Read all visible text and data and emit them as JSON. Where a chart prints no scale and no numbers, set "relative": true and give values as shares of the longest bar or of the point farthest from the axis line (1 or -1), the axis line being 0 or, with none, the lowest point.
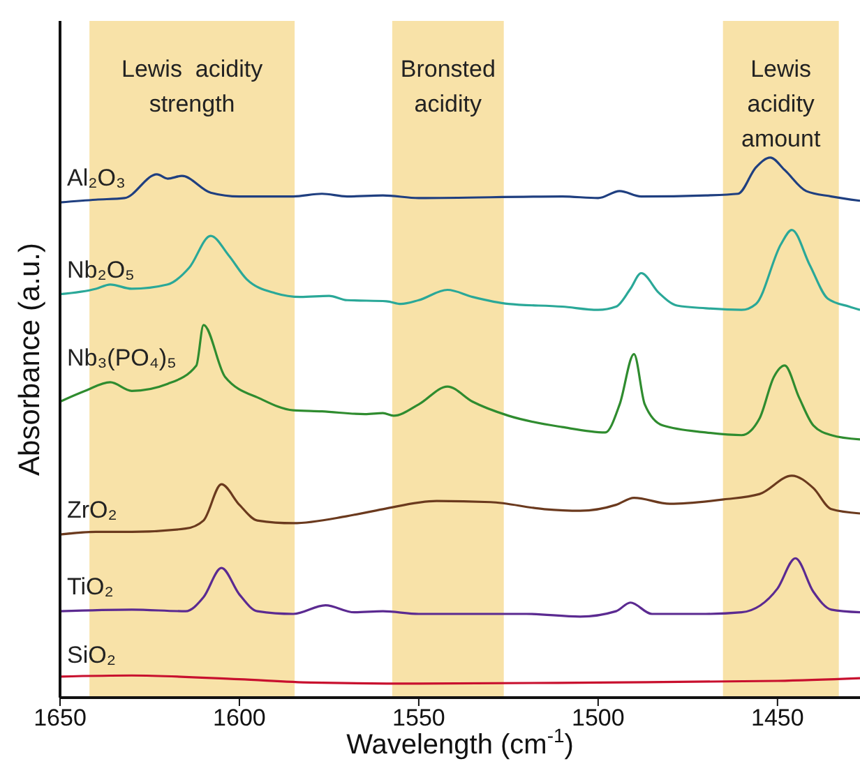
{
  "chart_data": {
    "type": "line",
    "relative": true,
    "xlabel": "Wavelength (cm$^{-1}$)",
    "ylabel": "Absorbance (a.u.)",
    "xlim": [
      1650,
      1427
    ],
    "xticks": [
      1650,
      1600,
      1550,
      1500,
      1450
    ],
    "grid": false,
    "legend": false,
    "marker": "none",
    "line_style": "solid",
    "bands": [
      {
        "axis": "x",
        "from": 1641.8,
        "to": 1584.6,
        "label": "Lewis  acidity\nstrength",
        "color": "#f8e2a8"
      },
      {
        "axis": "x",
        "from": 1557.4,
        "to": 1526.3,
        "label": "Bronsted\nacidity",
        "color": "#f8e2a8"
      },
      {
        "axis": "x",
        "from": 1465.2,
        "to": 1432.9,
        "label": "Lewis\nacidity\namount",
        "color": "#f8e2a8"
      }
    ],
    "series": [
      {
        "name": "Al₂O₃",
        "color": "#1f3f80",
        "x": [
          1650,
          1640,
          1632,
          1623,
          1620,
          1616,
          1608,
          1600,
          1585,
          1577,
          1570,
          1560,
          1550,
          1510,
          1500,
          1494,
          1488,
          1470,
          1461,
          1456,
          1452,
          1448,
          1442,
          1435,
          1427
        ],
        "values": [
          0.917,
          0.922,
          0.925,
          0.969,
          0.961,
          0.966,
          0.935,
          0.928,
          0.928,
          0.933,
          0.928,
          0.93,
          0.925,
          0.928,
          0.925,
          0.938,
          0.928,
          0.93,
          0.933,
          0.982,
          1.0,
          0.977,
          0.938,
          0.928,
          0.92
        ]
      },
      {
        "name": "Nb₂O₅",
        "color": "#2aa898",
        "x": [
          1650,
          1640,
          1636,
          1630,
          1620,
          1614,
          1608,
          1603,
          1598,
          1590,
          1583,
          1575,
          1570,
          1559,
          1555,
          1550,
          1542,
          1535,
          1525,
          1510,
          1500,
          1495,
          1491,
          1488,
          1483,
          1478,
          1470,
          1460,
          1456,
          1449,
          1446,
          1441,
          1436,
          1430,
          1427
        ],
        "values": [
          0.747,
          0.757,
          0.765,
          0.757,
          0.765,
          0.796,
          0.855,
          0.819,
          0.775,
          0.749,
          0.742,
          0.744,
          0.736,
          0.734,
          0.729,
          0.736,
          0.755,
          0.742,
          0.729,
          0.724,
          0.718,
          0.724,
          0.757,
          0.786,
          0.749,
          0.726,
          0.721,
          0.718,
          0.729,
          0.84,
          0.866,
          0.801,
          0.739,
          0.724,
          0.718
        ]
      },
      {
        "name": "Nb₃(PO₄)₅",
        "color": "#2f8c2f",
        "x": [
          1650,
          1643,
          1636,
          1630,
          1620,
          1612,
          1610,
          1604,
          1594,
          1585,
          1577,
          1565,
          1560,
          1557,
          1550,
          1542,
          1535,
          1525,
          1510,
          1498,
          1494,
          1490,
          1487,
          1482,
          1470,
          1460,
          1455,
          1451,
          1448,
          1444,
          1440,
          1435,
          1427
        ],
        "values": [
          0.548,
          0.568,
          0.584,
          0.568,
          0.581,
          0.615,
          0.69,
          0.594,
          0.553,
          0.532,
          0.53,
          0.525,
          0.527,
          0.522,
          0.543,
          0.576,
          0.548,
          0.522,
          0.501,
          0.491,
          0.543,
          0.636,
          0.543,
          0.504,
          0.491,
          0.486,
          0.517,
          0.594,
          0.615,
          0.556,
          0.504,
          0.486,
          0.478
        ]
      },
      {
        "name": "ZrO₂",
        "color": "#6b3a1e",
        "x": [
          1650,
          1640,
          1630,
          1615,
          1610,
          1605,
          1600,
          1595,
          1585,
          1570,
          1560,
          1545,
          1530,
          1515,
          1505,
          1495,
          1490,
          1480,
          1465,
          1455,
          1446,
          1440,
          1435,
          1427
        ],
        "values": [
          0.302,
          0.307,
          0.307,
          0.313,
          0.328,
          0.395,
          0.357,
          0.328,
          0.323,
          0.336,
          0.349,
          0.364,
          0.362,
          0.349,
          0.346,
          0.357,
          0.37,
          0.359,
          0.367,
          0.377,
          0.411,
          0.388,
          0.349,
          0.341
        ]
      },
      {
        "name": "TiO₂",
        "color": "#5b2a91",
        "x": [
          1650,
          1630,
          1615,
          1610,
          1605,
          1600,
          1595,
          1585,
          1576,
          1568,
          1560,
          1550,
          1520,
          1505,
          1495,
          1491,
          1485,
          1470,
          1460,
          1450,
          1445,
          1440,
          1435,
          1427
        ],
        "values": [
          0.16,
          0.163,
          0.16,
          0.186,
          0.24,
          0.191,
          0.16,
          0.155,
          0.171,
          0.158,
          0.16,
          0.155,
          0.155,
          0.15,
          0.16,
          0.176,
          0.155,
          0.155,
          0.158,
          0.202,
          0.258,
          0.196,
          0.163,
          0.158
        ]
      },
      {
        "name": "SiO₂",
        "color": "#c8102e",
        "x": [
          1650,
          1630,
          1600,
          1580,
          1550,
          1500,
          1450,
          1427
        ],
        "values": [
          0.039,
          0.041,
          0.034,
          0.028,
          0.026,
          0.028,
          0.031,
          0.036
        ]
      }
    ]
  }
}
